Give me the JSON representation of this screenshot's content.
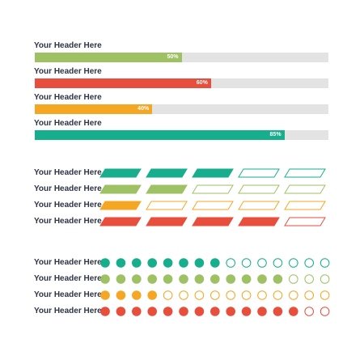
{
  "progress_bars": [
    {
      "label": "Your Header Here",
      "value": 50,
      "value_label": "50%",
      "color": "#9dc163"
    },
    {
      "label": "Your Header Here",
      "value": 60,
      "value_label": "60%",
      "color": "#e84e3c"
    },
    {
      "label": "Your Header Here",
      "value": 40,
      "value_label": "40%",
      "color": "#f5a623"
    },
    {
      "label": "Your Header Here",
      "value": 85,
      "value_label": "85%",
      "color": "#16ae8c"
    }
  ],
  "segment_rows": [
    {
      "label": "Your Header Here",
      "filled": 3,
      "total": 5,
      "color": "#16ae8c"
    },
    {
      "label": "Your Header Here",
      "filled": 2,
      "total": 5,
      "color": "#9dc163"
    },
    {
      "label": "Your Header Here",
      "filled": 1,
      "total": 5,
      "color": "#f5a623"
    },
    {
      "label": "Your Header Here",
      "filled": 4,
      "total": 5,
      "color": "#e84e3c"
    }
  ],
  "dot_rows": [
    {
      "label": "Your Header Here",
      "filled": 8,
      "total": 15,
      "color": "#16ae8c"
    },
    {
      "label": "Your Header Here",
      "filled": 12,
      "total": 15,
      "color": "#9dc163"
    },
    {
      "label": "Your Header Here",
      "filled": 4,
      "total": 15,
      "color": "#f5a623"
    },
    {
      "label": "Your Header Here",
      "filled": 13,
      "total": 15,
      "color": "#e84e3c"
    }
  ]
}
